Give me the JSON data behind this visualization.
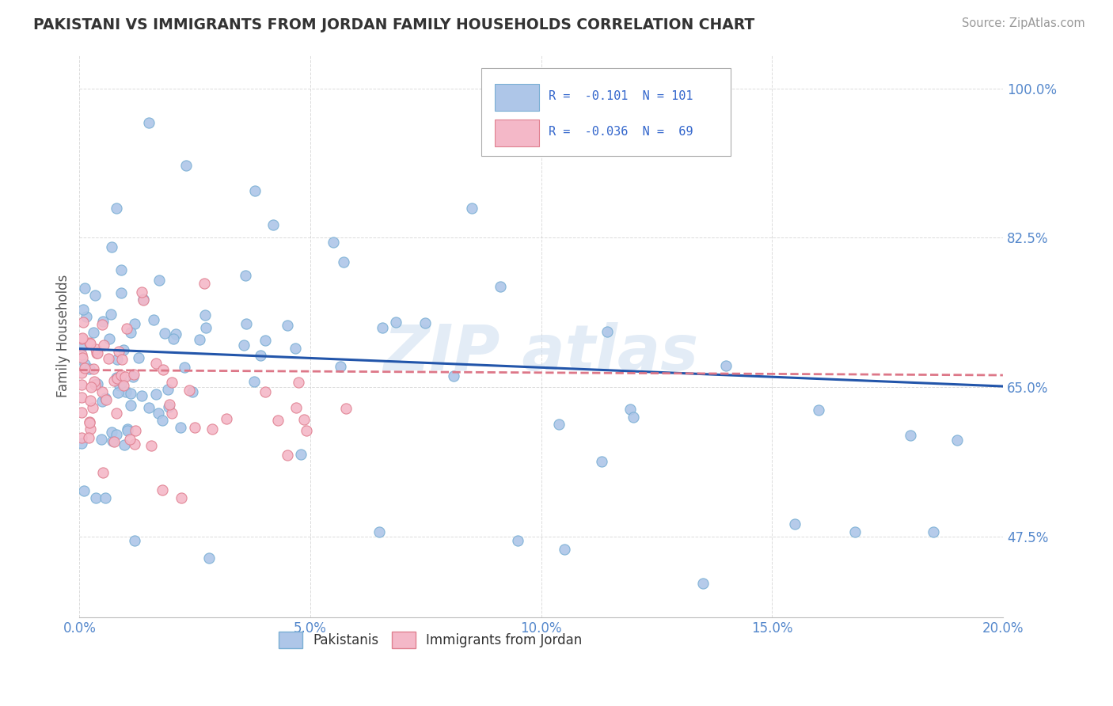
{
  "title": "PAKISTANI VS IMMIGRANTS FROM JORDAN FAMILY HOUSEHOLDS CORRELATION CHART",
  "source": "Source: ZipAtlas.com",
  "ylabel": "Family Households",
  "xlim": [
    0.0,
    20.0
  ],
  "ylim": [
    38.0,
    104.0
  ],
  "yticks": [
    47.5,
    65.0,
    82.5,
    100.0
  ],
  "ytick_labels": [
    "47.5%",
    "65.0%",
    "82.5%",
    "100.0%"
  ],
  "xticks": [
    0.0,
    5.0,
    10.0,
    15.0,
    20.0
  ],
  "xtick_labels": [
    "0.0%",
    "5.0%",
    "10.0%",
    "15.0%",
    "20.0%"
  ],
  "pakistani_color": "#aec6e8",
  "jordan_color": "#f4b8c8",
  "pakistani_edge": "#7aafd4",
  "jordan_edge": "#e08090",
  "trend_pakistani": "#2255aa",
  "trend_jordan": "#dd7788",
  "legend_label1": "Pakistanis",
  "legend_label2": "Immigrants from Jordan",
  "background_color": "#ffffff",
  "grid_color": "#cccccc",
  "title_color": "#333333",
  "axis_label_color": "#555555",
  "tick_color": "#5588cc",
  "r_color": "#3366cc",
  "n_color": "#111111",
  "watermark_color": "#ccddef"
}
